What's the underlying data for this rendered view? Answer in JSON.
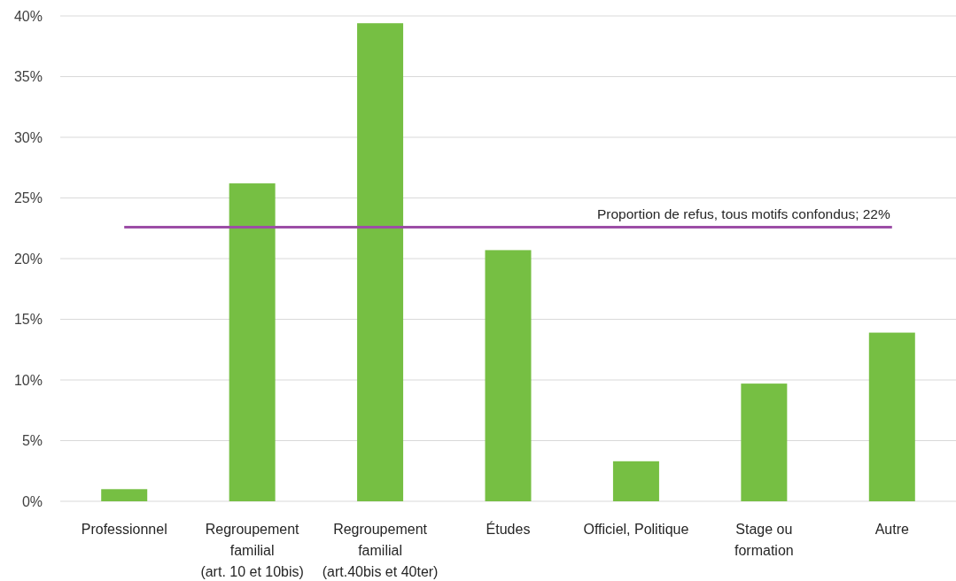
{
  "chart_data": {
    "type": "bar",
    "categories": [
      "Professionnel",
      "Regroupement\nfamilial\n(art. 10 et 10bis)",
      "Regroupement\nfamilial\n(art.40bis et 40ter)",
      "Études",
      "Officiel, Politique",
      "Stage ou\nformation",
      "Autre"
    ],
    "values": [
      1.0,
      26.2,
      39.4,
      20.7,
      3.3,
      9.7,
      13.9
    ],
    "color": "#76bf43",
    "ylim": [
      0,
      40
    ],
    "yticks": [
      {
        "value": 0,
        "label": "0%"
      },
      {
        "value": 5,
        "label": "5%"
      },
      {
        "value": 10,
        "label": "10%"
      },
      {
        "value": 15,
        "label": "15%"
      },
      {
        "value": 20,
        "label": "20%"
      },
      {
        "value": 25,
        "label": "25%"
      },
      {
        "value": 30,
        "label": "30%"
      },
      {
        "value": 35,
        "label": "35%"
      },
      {
        "value": 40,
        "label": "40%"
      }
    ],
    "grid": "y",
    "ref_lines": [
      {
        "axis": "y",
        "value": 22.6,
        "label": "Proportion de refus, tous motifs confondus; 22%",
        "color": "#9c4ea6"
      }
    ]
  }
}
